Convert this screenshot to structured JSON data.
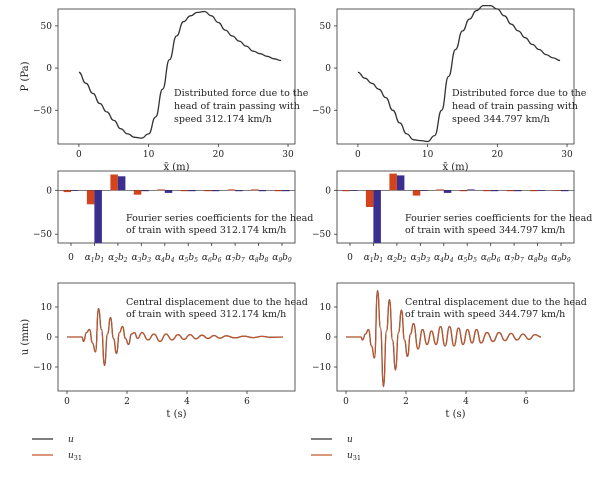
{
  "legend": [
    {
      "label": "u",
      "color": "#333333"
    },
    {
      "label": "u",
      "sub": "31",
      "color": "#c8572a"
    }
  ],
  "chart_data": [
    {
      "type": "line",
      "annotation": [
        "Distributed force due to the",
        "head of train passing with",
        "speed 312.174 km/h"
      ],
      "xlabel": "x̄ (m)",
      "ylabel": "P (Pa)",
      "xlim": [
        -3,
        31
      ],
      "ylim": [
        -90,
        70
      ],
      "xticks": [
        "0",
        "10",
        "20",
        "30"
      ],
      "yticks": [
        "50",
        "0",
        "−50"
      ],
      "series": [
        {
          "color": "#333333",
          "x": [
            0,
            1,
            2,
            3,
            4,
            5,
            6,
            7,
            8,
            9,
            10,
            11,
            12,
            13,
            14,
            15,
            16,
            17,
            18,
            19,
            20,
            21,
            22,
            23,
            24,
            25,
            26,
            27,
            28,
            29
          ],
          "y": [
            -5,
            -18,
            -30,
            -42,
            -52,
            -62,
            -72,
            -78,
            -82,
            -83,
            -78,
            -58,
            -25,
            10,
            38,
            55,
            62,
            66,
            67,
            62,
            54,
            45,
            38,
            32,
            26,
            20,
            17,
            14,
            11,
            9
          ]
        }
      ]
    },
    {
      "type": "line",
      "annotation": [
        "Distributed force due to the",
        "head of train passing with",
        "speed 344.797 km/h"
      ],
      "xlabel": "x̄ (m)",
      "ylabel": "",
      "xlim": [
        -3,
        31
      ],
      "ylim": [
        -90,
        70
      ],
      "xticks": [
        "0",
        "10",
        "20",
        "30"
      ],
      "yticks": [
        "50",
        "0",
        "−50"
      ],
      "series": [
        {
          "color": "#333333",
          "x": [
            0,
            1,
            2,
            3,
            4,
            5,
            6,
            7,
            8,
            9,
            10,
            11,
            12,
            13,
            14,
            15,
            16,
            17,
            18,
            19,
            20,
            21,
            22,
            23,
            24,
            25,
            26,
            27,
            28,
            29
          ],
          "y": [
            -5,
            -12,
            -18,
            -25,
            -35,
            -50,
            -65,
            -78,
            -85,
            -86,
            -87,
            -80,
            -50,
            -10,
            22,
            44,
            58,
            68,
            74,
            74,
            70,
            62,
            52,
            44,
            36,
            28,
            22,
            16,
            12,
            9
          ]
        }
      ]
    },
    {
      "type": "bar",
      "annotation": [
        "Fourier series coefficients for the head",
        "of train with speed 312.174 km/h"
      ],
      "categories": [
        "0",
        "α1",
        "α2",
        "α3",
        "α4",
        "α5",
        "α6",
        "α7",
        "α8",
        "α9"
      ],
      "category_labels": [
        {
          "a": "0",
          "b": ""
        },
        {
          "a": "α",
          "i": "1",
          "b": "b",
          "j": "1"
        },
        {
          "a": "α",
          "i": "2",
          "b": "b",
          "j": "2"
        },
        {
          "a": "α",
          "i": "3",
          "b": "b",
          "j": "3"
        },
        {
          "a": "α",
          "i": "4",
          "b": "b",
          "j": "4"
        },
        {
          "a": "α",
          "i": "5",
          "b": "b",
          "j": "5"
        },
        {
          "a": "α",
          "i": "6",
          "b": "b",
          "j": "6"
        },
        {
          "a": "α",
          "i": "7",
          "b": "b",
          "j": "7"
        },
        {
          "a": "α",
          "i": "8",
          "b": "b",
          "j": "8"
        },
        {
          "a": "α",
          "i": "9",
          "b": "b",
          "j": "9"
        }
      ],
      "ylim": [
        -60,
        22
      ],
      "yticks": [
        "0",
        "−50"
      ],
      "series": [
        {
          "color": "#d4441c",
          "values": [
            -2,
            -16,
            18,
            -5,
            1,
            -1,
            -1,
            1,
            1,
            -1
          ]
        },
        {
          "color": "#3a2f8f",
          "values": [
            0,
            -60,
            16,
            -1,
            -3,
            -1,
            -1,
            -1,
            -1,
            -1
          ]
        }
      ]
    },
    {
      "type": "bar",
      "annotation": [
        "Fourier series coefficients for the head",
        "of train with speed 344.797 km/h"
      ],
      "categories": [
        "0",
        "α1",
        "α2",
        "α3",
        "α4",
        "α5",
        "α6",
        "α7",
        "α8",
        "α9"
      ],
      "category_labels": [
        {
          "a": "0",
          "b": ""
        },
        {
          "a": "α",
          "i": "1",
          "b": "b",
          "j": "1"
        },
        {
          "a": "α",
          "i": "2",
          "b": "b",
          "j": "2"
        },
        {
          "a": "α",
          "i": "3",
          "b": "b",
          "j": "3"
        },
        {
          "a": "α",
          "i": "4",
          "b": "b",
          "j": "4"
        },
        {
          "a": "α",
          "i": "5",
          "b": "b",
          "j": "5"
        },
        {
          "a": "α",
          "i": "6",
          "b": "b",
          "j": "6"
        },
        {
          "a": "α",
          "i": "7",
          "b": "b",
          "j": "7"
        },
        {
          "a": "α",
          "i": "8",
          "b": "b",
          "j": "8"
        },
        {
          "a": "α",
          "i": "9",
          "b": "b",
          "j": "9"
        }
      ],
      "ylim": [
        -60,
        22
      ],
      "yticks": [
        "0",
        "−50"
      ],
      "series": [
        {
          "color": "#d4441c",
          "values": [
            -1,
            -19,
            19,
            -6,
            1,
            -1,
            -1,
            -1,
            -1,
            0
          ]
        },
        {
          "color": "#3a2f8f",
          "values": [
            0,
            -60,
            17,
            0,
            -3,
            1,
            -1,
            -1,
            0,
            -1
          ]
        }
      ]
    },
    {
      "type": "line",
      "annotation": [
        "Central displacement due to the head",
        "of train with speed 312.174 km/h"
      ],
      "xlabel": "t (s)",
      "ylabel": "u (mm)",
      "xlim": [
        -0.3,
        7.6
      ],
      "ylim": [
        -18,
        18
      ],
      "xticks": [
        "0",
        "2",
        "4",
        "6"
      ],
      "yticks": [
        "10",
        "0",
        "−10"
      ],
      "t_end": 7.2,
      "series": [
        {
          "color": "#333333",
          "wave": [
            [
              0.5,
              0.0
            ],
            [
              0.55,
              -1.5
            ],
            [
              0.65,
              1.5
            ],
            [
              0.75,
              2.5
            ],
            [
              0.85,
              -2.0
            ],
            [
              0.95,
              -5.0
            ],
            [
              1.05,
              9.5
            ],
            [
              1.15,
              2.5
            ],
            [
              1.25,
              -9.5
            ],
            [
              1.35,
              1.0
            ],
            [
              1.45,
              6.5
            ],
            [
              1.55,
              -0.5
            ],
            [
              1.65,
              -5.5
            ],
            [
              1.75,
              1.5
            ],
            [
              1.85,
              3.5
            ],
            [
              1.95,
              -0.5
            ],
            [
              2.05,
              -2.5
            ],
            [
              2.15,
              1.0
            ],
            [
              2.25,
              1.5
            ],
            [
              2.35,
              -0.5
            ],
            [
              2.5,
              1.5
            ],
            [
              2.7,
              -1.0
            ],
            [
              2.9,
              1.0
            ],
            [
              3.1,
              -1.5
            ],
            [
              3.3,
              1.0
            ],
            [
              3.5,
              -1.0
            ],
            [
              3.7,
              0.8
            ],
            [
              3.9,
              -0.8
            ],
            [
              4.1,
              0.8
            ],
            [
              4.3,
              -0.6
            ],
            [
              4.5,
              0.6
            ],
            [
              4.7,
              -0.5
            ],
            [
              4.9,
              0.5
            ],
            [
              5.1,
              -0.4
            ],
            [
              5.3,
              0.4
            ],
            [
              5.6,
              -0.3
            ],
            [
              5.9,
              0.3
            ],
            [
              6.2,
              -0.2
            ],
            [
              6.5,
              0.2
            ],
            [
              6.8,
              -0.1
            ],
            [
              7.2,
              0.0
            ]
          ]
        },
        {
          "color": "#c8572a",
          "wave": [
            [
              0.5,
              0.0
            ],
            [
              0.55,
              -1.5
            ],
            [
              0.65,
              1.5
            ],
            [
              0.75,
              2.5
            ],
            [
              0.85,
              -2.0
            ],
            [
              0.95,
              -5.0
            ],
            [
              1.05,
              9.5
            ],
            [
              1.15,
              2.5
            ],
            [
              1.25,
              -9.5
            ],
            [
              1.35,
              1.0
            ],
            [
              1.45,
              6.5
            ],
            [
              1.55,
              -0.5
            ],
            [
              1.65,
              -5.5
            ],
            [
              1.75,
              1.5
            ],
            [
              1.85,
              3.5
            ],
            [
              1.95,
              -0.5
            ],
            [
              2.05,
              -2.5
            ],
            [
              2.15,
              1.0
            ],
            [
              2.25,
              1.5
            ],
            [
              2.35,
              -0.5
            ],
            [
              2.5,
              1.5
            ],
            [
              2.7,
              -1.0
            ],
            [
              2.9,
              1.0
            ],
            [
              3.1,
              -1.5
            ],
            [
              3.3,
              1.0
            ],
            [
              3.5,
              -1.0
            ],
            [
              3.7,
              0.8
            ],
            [
              3.9,
              -0.8
            ],
            [
              4.1,
              0.8
            ],
            [
              4.3,
              -0.6
            ],
            [
              4.5,
              0.6
            ],
            [
              4.7,
              -0.5
            ],
            [
              4.9,
              0.5
            ],
            [
              5.1,
              -0.4
            ],
            [
              5.3,
              0.4
            ],
            [
              5.6,
              -0.3
            ],
            [
              5.9,
              0.3
            ],
            [
              6.2,
              -0.2
            ],
            [
              6.5,
              0.2
            ],
            [
              6.8,
              -0.1
            ],
            [
              7.2,
              0.0
            ]
          ]
        }
      ]
    },
    {
      "type": "line",
      "annotation": [
        "Central displacement due to the head",
        "of train with speed 344.797 km/h"
      ],
      "xlabel": "t (s)",
      "ylabel": "",
      "xlim": [
        -0.3,
        7.6
      ],
      "ylim": [
        -18,
        18
      ],
      "xticks": [
        "0",
        "2",
        "4",
        "6"
      ],
      "yticks": [
        "10",
        "0",
        "−10"
      ],
      "t_end": 6.5,
      "series": [
        {
          "color": "#333333",
          "wave": [
            [
              0.5,
              0.0
            ],
            [
              0.55,
              -1.0
            ],
            [
              0.65,
              1.0
            ],
            [
              0.75,
              2.5
            ],
            [
              0.85,
              -3.0
            ],
            [
              0.95,
              -7.0
            ],
            [
              1.05,
              15.5
            ],
            [
              1.15,
              3.0
            ],
            [
              1.25,
              -16.5
            ],
            [
              1.35,
              2.0
            ],
            [
              1.45,
              12.5
            ],
            [
              1.55,
              -1.0
            ],
            [
              1.65,
              -11.0
            ],
            [
              1.75,
              1.5
            ],
            [
              1.85,
              9.0
            ],
            [
              1.95,
              -1.0
            ],
            [
              2.05,
              -6.5
            ],
            [
              2.15,
              1.0
            ],
            [
              2.25,
              4.5
            ],
            [
              2.4,
              -4.0
            ],
            [
              2.55,
              2.5
            ],
            [
              2.7,
              -2.5
            ],
            [
              2.85,
              2.0
            ],
            [
              3.0,
              -2.5
            ],
            [
              3.15,
              3.5
            ],
            [
              3.3,
              -3.0
            ],
            [
              3.45,
              3.5
            ],
            [
              3.6,
              -3.0
            ],
            [
              3.75,
              3.0
            ],
            [
              3.9,
              -2.5
            ],
            [
              4.05,
              2.5
            ],
            [
              4.2,
              -2.0
            ],
            [
              4.35,
              2.5
            ],
            [
              4.5,
              -2.0
            ],
            [
              4.7,
              1.5
            ],
            [
              4.9,
              -1.5
            ],
            [
              5.1,
              1.5
            ],
            [
              5.3,
              -1.2
            ],
            [
              5.5,
              1.2
            ],
            [
              5.7,
              -1.0
            ],
            [
              5.9,
              1.0
            ],
            [
              6.1,
              -0.8
            ],
            [
              6.3,
              0.8
            ],
            [
              6.5,
              0.0
            ]
          ]
        },
        {
          "color": "#c8572a",
          "wave": [
            [
              0.5,
              0.0
            ],
            [
              0.55,
              -1.0
            ],
            [
              0.65,
              1.0
            ],
            [
              0.75,
              2.5
            ],
            [
              0.85,
              -3.0
            ],
            [
              0.95,
              -7.0
            ],
            [
              1.05,
              15.5
            ],
            [
              1.15,
              3.0
            ],
            [
              1.25,
              -16.5
            ],
            [
              1.35,
              2.0
            ],
            [
              1.45,
              12.5
            ],
            [
              1.55,
              -1.0
            ],
            [
              1.65,
              -11.0
            ],
            [
              1.75,
              1.5
            ],
            [
              1.85,
              9.0
            ],
            [
              1.95,
              -1.0
            ],
            [
              2.05,
              -6.5
            ],
            [
              2.15,
              1.0
            ],
            [
              2.25,
              4.5
            ],
            [
              2.4,
              -4.0
            ],
            [
              2.55,
              2.5
            ],
            [
              2.7,
              -2.5
            ],
            [
              2.85,
              2.0
            ],
            [
              3.0,
              -2.5
            ],
            [
              3.15,
              3.5
            ],
            [
              3.3,
              -3.0
            ],
            [
              3.45,
              3.5
            ],
            [
              3.6,
              -3.0
            ],
            [
              3.75,
              3.0
            ],
            [
              3.9,
              -2.5
            ],
            [
              4.05,
              2.5
            ],
            [
              4.2,
              -2.0
            ],
            [
              4.35,
              2.5
            ],
            [
              4.5,
              -2.0
            ],
            [
              4.7,
              1.5
            ],
            [
              4.9,
              -1.5
            ],
            [
              5.1,
              1.5
            ],
            [
              5.3,
              -1.2
            ],
            [
              5.5,
              1.2
            ],
            [
              5.7,
              -1.0
            ],
            [
              5.9,
              1.0
            ],
            [
              6.1,
              -0.8
            ],
            [
              6.3,
              0.8
            ],
            [
              6.5,
              0.0
            ]
          ]
        }
      ]
    }
  ]
}
